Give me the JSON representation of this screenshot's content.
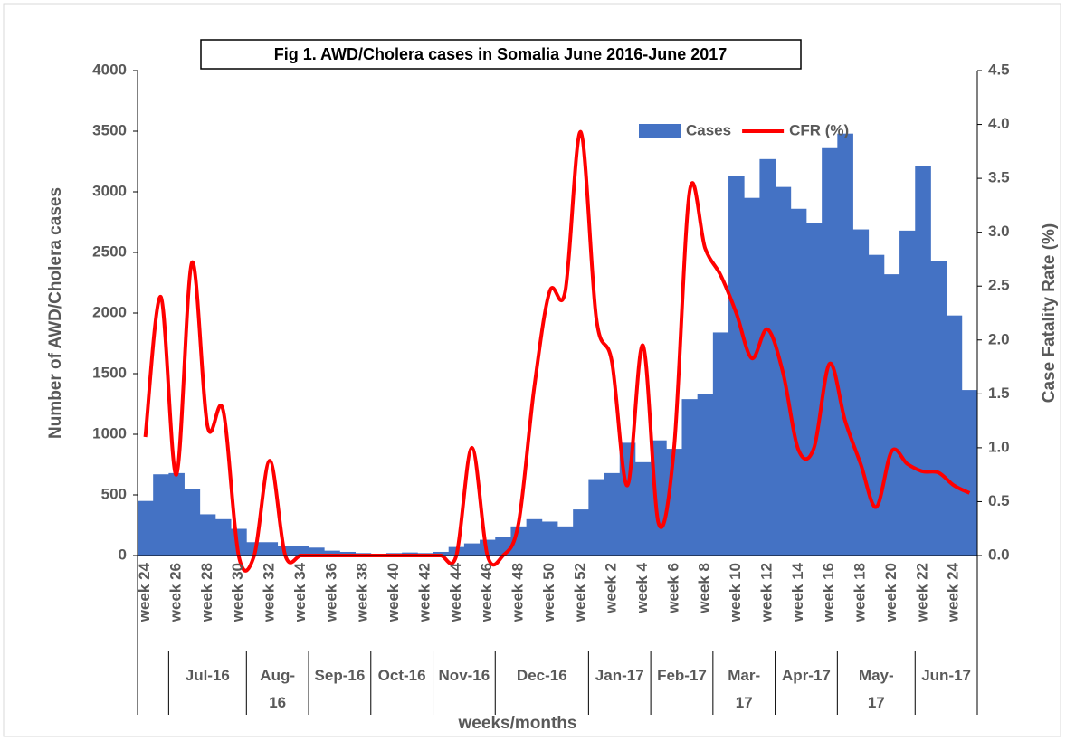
{
  "chart_data": {
    "type": "combo",
    "title": "Fig 1. AWD/Cholera cases in Somalia June 2016-June 2017",
    "ylabel": "Number of AWD/Cholera cases",
    "y2label": "Case Fatality Rate (%)",
    "xlabel": "weeks/months",
    "categories": [
      "week 24",
      null,
      "week 26",
      null,
      "week 28",
      null,
      "week 30",
      null,
      "week 32",
      null,
      "week 34",
      null,
      "week 36",
      null,
      "week 38",
      null,
      "week 40",
      null,
      "week 42",
      null,
      "week 44",
      null,
      "week 46",
      null,
      "week 48",
      null,
      "week 50",
      null,
      "week 52",
      null,
      "week 2",
      null,
      "week 4",
      null,
      "week 6",
      null,
      "week 8",
      null,
      "week 10",
      null,
      "week 12",
      null,
      "week 14",
      null,
      "week 16",
      null,
      "week 18",
      null,
      "week 20",
      null,
      "week 22",
      null,
      "week 24",
      null
    ],
    "month_groups": [
      {
        "label": null,
        "span": 2
      },
      {
        "label": "Jul-16",
        "span": 5
      },
      {
        "label": "Aug-\n16",
        "span": 4
      },
      {
        "label": "Sep-16",
        "span": 4
      },
      {
        "label": "Oct-16",
        "span": 4
      },
      {
        "label": "Nov-16",
        "span": 4
      },
      {
        "label": "Dec-16",
        "span": 6
      },
      {
        "label": "Jan-17",
        "span": 4
      },
      {
        "label": "Feb-17",
        "span": 4
      },
      {
        "label": "Mar-\n17",
        "span": 4
      },
      {
        "label": "Apr-17",
        "span": 4
      },
      {
        "label": "May-\n17",
        "span": 5
      },
      {
        "label": "Jun-17",
        "span": 4
      }
    ],
    "series": [
      {
        "name": "Cases",
        "type": "bar",
        "color": "#4472c4",
        "values": [
          450,
          670,
          680,
          550,
          340,
          300,
          220,
          110,
          110,
          80,
          80,
          65,
          40,
          30,
          20,
          15,
          20,
          25,
          20,
          30,
          70,
          100,
          130,
          150,
          240,
          300,
          280,
          240,
          380,
          630,
          680,
          930,
          770,
          950,
          880,
          1290,
          1330,
          1840,
          3130,
          2950,
          3270,
          3040,
          2860,
          2740,
          3360,
          3480,
          2690,
          2480,
          2320,
          2680,
          3210,
          2430,
          1980,
          1365
        ]
      },
      {
        "name": "CFR (%)",
        "type": "line",
        "axis": "y2",
        "color": "#ff0000",
        "values": [
          1.1,
          2.4,
          0.75,
          2.72,
          1.2,
          1.35,
          0,
          0,
          0.88,
          0,
          0,
          0,
          0,
          0,
          0,
          0,
          0,
          0,
          0,
          0,
          0,
          1.0,
          0,
          0,
          0.3,
          1.55,
          2.45,
          2.45,
          3.93,
          2.2,
          1.8,
          0.65,
          1.95,
          0.3,
          1.0,
          3.38,
          2.85,
          2.6,
          2.25,
          1.83,
          2.1,
          1.7,
          0.98,
          1.0,
          1.78,
          1.25,
          0.85,
          0.45,
          0.97,
          0.85,
          0.78,
          0.77,
          0.65,
          0.58
        ]
      }
    ],
    "ylim": [
      0,
      4000
    ],
    "yticks": [
      0,
      500,
      1000,
      1500,
      2000,
      2500,
      3000,
      3500,
      4000
    ],
    "y2lim": [
      0,
      4.5
    ],
    "y2ticks": [
      {
        "value": 0,
        "label": "0.0"
      },
      0.5,
      {
        "value": 1,
        "label": "1.0"
      },
      1.5,
      {
        "value": 2,
        "label": "2.0"
      },
      2.5,
      {
        "value": 3,
        "label": "3.0"
      },
      3.5,
      {
        "value": 4,
        "label": "4.0"
      },
      4.5
    ],
    "legend": "upper right",
    "grid": false
  }
}
